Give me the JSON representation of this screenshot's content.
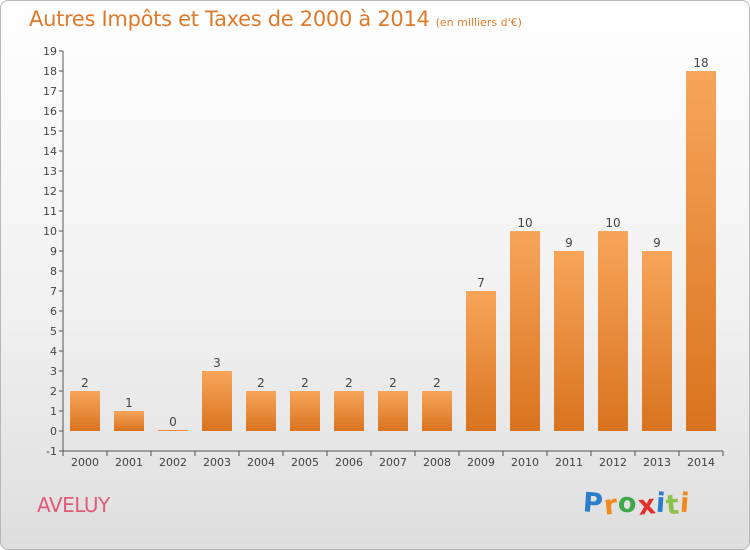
{
  "title": "Autres Impôts et Taxes de 2000 à 2014",
  "unit": "(en milliers d'€)",
  "commune": "AVELUY",
  "brand": {
    "letters": [
      "P",
      "r",
      "o",
      "x",
      "i",
      "t",
      "i"
    ],
    "colors": [
      "#2b7cc9",
      "#f08a1c",
      "#3ea84a",
      "#e0312c",
      "#2b7cc9",
      "#8bc34a",
      "#f08a1c"
    ]
  },
  "colors": {
    "bar": "#f2913a",
    "accent": "#e07a2b",
    "axis": "#555555"
  },
  "chart_data": {
    "type": "bar",
    "categories": [
      "2000",
      "2001",
      "2002",
      "2003",
      "2004",
      "2005",
      "2006",
      "2007",
      "2008",
      "2009",
      "2010",
      "2011",
      "2012",
      "2013",
      "2014"
    ],
    "values": [
      2,
      1,
      0,
      3,
      2,
      2,
      2,
      2,
      2,
      7,
      10,
      9,
      10,
      9,
      18
    ],
    "data_labels": [
      "2",
      "1",
      "0",
      "3",
      "2",
      "2",
      "2",
      "2",
      "2",
      "7",
      "10",
      "9",
      "10",
      "9",
      "18"
    ],
    "yticks": [
      "-1",
      "0",
      "1",
      "2",
      "3",
      "4",
      "5",
      "6",
      "7",
      "8",
      "9",
      "10",
      "11",
      "12",
      "13",
      "14",
      "15",
      "16",
      "17",
      "18",
      "19"
    ],
    "ylim": [
      -1,
      19
    ],
    "grid": false
  }
}
